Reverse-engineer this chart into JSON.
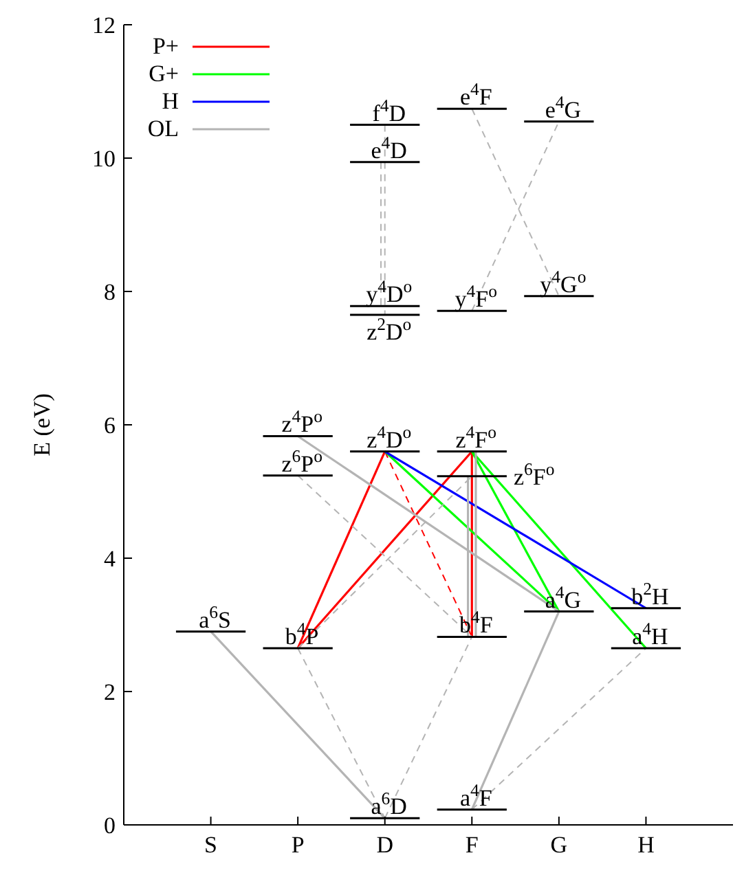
{
  "chart_data": {
    "type": "line",
    "ylabel": "E (eV)",
    "categories": [
      "S",
      "P",
      "D",
      "F",
      "G",
      "H"
    ],
    "ylim": [
      0,
      12
    ],
    "yticks": [
      0,
      2,
      4,
      6,
      8,
      10,
      12
    ],
    "grid": false,
    "legend": "top left",
    "marker": "none",
    "series": [
      {
        "name": "P+",
        "color": "#ff0000",
        "line_style": "solid",
        "x": [
          "P",
          "D"
        ],
        "values": [
          2.65,
          5.6
        ]
      },
      {
        "color": "#ff0000",
        "line_style": "solid",
        "x": [
          "P",
          "F"
        ],
        "values": [
          2.65,
          5.6
        ]
      },
      {
        "color": "#ff0000",
        "line_style": "solid",
        "x": [
          "F",
          "F"
        ],
        "values": [
          5.6,
          2.82
        ]
      },
      {
        "color": "#ff0000",
        "line_style": "dashed",
        "x": [
          "D",
          "F"
        ],
        "values": [
          5.6,
          2.82
        ]
      },
      {
        "name": "G+",
        "color": "#00ff00",
        "line_style": "solid",
        "x": [
          "D",
          "G"
        ],
        "values": [
          5.6,
          3.2
        ]
      },
      {
        "color": "#00ff00",
        "line_style": "solid",
        "x": [
          "F",
          "G"
        ],
        "values": [
          5.6,
          3.2
        ]
      },
      {
        "color": "#00ff00",
        "line_style": "solid",
        "x": [
          "F",
          "H"
        ],
        "values": [
          5.6,
          2.65
        ]
      },
      {
        "name": "H",
        "color": "#0000ff",
        "line_style": "solid",
        "x": [
          "D",
          "H"
        ],
        "values": [
          5.6,
          3.25
        ]
      },
      {
        "name": "OL",
        "color": "#b4b4b4",
        "line_style": "solid",
        "x": [
          "S",
          "D"
        ],
        "values": [
          2.9,
          0.1
        ]
      },
      {
        "color": "#b4b4b4",
        "line_style": "solid",
        "x": [
          "P",
          "G"
        ],
        "values": [
          5.83,
          3.2
        ]
      },
      {
        "color": "#b4b4b4",
        "line_style": "solid",
        "x": [
          "F",
          "G"
        ],
        "values": [
          0.23,
          3.2
        ]
      },
      {
        "color": "#b4b4b4",
        "line_style": "solid",
        "x": [
          "F",
          "F"
        ],
        "values": [
          5.23,
          2.82
        ]
      },
      {
        "color": "#b4b4b4",
        "line_style": "solid",
        "x": [
          "F",
          "F"
        ],
        "values": [
          5.6,
          2.82
        ]
      },
      {
        "color": "#b4b4b4",
        "line_style": "dashed",
        "x": [
          "P",
          "D"
        ],
        "values": [
          2.65,
          0.1
        ]
      },
      {
        "color": "#b4b4b4",
        "line_style": "dashed",
        "x": [
          "D",
          "F"
        ],
        "values": [
          0.1,
          2.82
        ]
      },
      {
        "color": "#b4b4b4",
        "line_style": "dashed",
        "x": [
          "P",
          "F"
        ],
        "values": [
          5.24,
          2.82
        ]
      },
      {
        "color": "#b4b4b4",
        "line_style": "dashed",
        "x": [
          "P",
          "F"
        ],
        "values": [
          2.65,
          5.23
        ]
      },
      {
        "color": "#b4b4b4",
        "line_style": "dashed",
        "x": [
          "F",
          "H"
        ],
        "values": [
          0.23,
          2.65
        ]
      },
      {
        "color": "#b4b4b4",
        "line_style": "dashed",
        "x": [
          "D",
          "D"
        ],
        "values": [
          10.5,
          7.65
        ]
      },
      {
        "color": "#b4b4b4",
        "line_style": "dashed",
        "x": [
          "D",
          "D"
        ],
        "values": [
          9.94,
          7.78
        ]
      },
      {
        "color": "#b4b4b4",
        "line_style": "dashed",
        "x": [
          "F",
          "G"
        ],
        "values": [
          10.74,
          7.93
        ]
      },
      {
        "color": "#b4b4b4",
        "line_style": "dashed",
        "x": [
          "F",
          "G"
        ],
        "values": [
          7.71,
          10.55
        ]
      }
    ],
    "annotations": [
      {
        "text": "a$^{6}$S",
        "x": "S",
        "y": 2.9
      },
      {
        "text": "b$^{4}$P",
        "x": "P",
        "y": 2.65
      },
      {
        "text": "z$^{4}$P$^{o}$",
        "x": "P",
        "y": 5.83
      },
      {
        "text": "z$^{6}$P$^{o}$",
        "x": "P",
        "y": 5.24
      },
      {
        "text": "a$^{6}$D",
        "x": "D",
        "y": 0.1
      },
      {
        "text": "z$^{4}$D$^{o}$",
        "x": "D",
        "y": 5.6
      },
      {
        "text": "z$^{2}$D$^{o}$",
        "x": "D",
        "y": 7.65
      },
      {
        "text": "y$^{4}$D$^{o}$",
        "x": "D",
        "y": 7.78
      },
      {
        "text": "e$^{4}$D",
        "x": "D",
        "y": 9.94
      },
      {
        "text": "f$^{4}$D",
        "x": "D",
        "y": 10.5
      },
      {
        "text": "a$^{4}$F",
        "x": "F",
        "y": 0.23
      },
      {
        "text": "b$^{4}$F",
        "x": "F",
        "y": 2.82
      },
      {
        "text": "z$^{6}$F$^{o}$",
        "x": "F",
        "y": 5.23
      },
      {
        "text": "z$^{4}$F$^{o}$",
        "x": "F",
        "y": 5.6
      },
      {
        "text": "y$^{4}$F$^{o}$",
        "x": "F",
        "y": 7.71
      },
      {
        "text": "e$^{4}$F",
        "x": "F",
        "y": 10.74
      },
      {
        "text": "a$^{4}$G",
        "x": "G",
        "y": 3.2
      },
      {
        "text": "y$^{4}$G$^{o}$",
        "x": "G",
        "y": 7.93
      },
      {
        "text": "e$^{4}$G",
        "x": "G",
        "y": 10.55
      },
      {
        "text": "a$^{4}$H",
        "x": "H",
        "y": 2.65
      },
      {
        "text": "b$^{2}$H",
        "x": "H",
        "y": 3.25
      }
    ]
  }
}
